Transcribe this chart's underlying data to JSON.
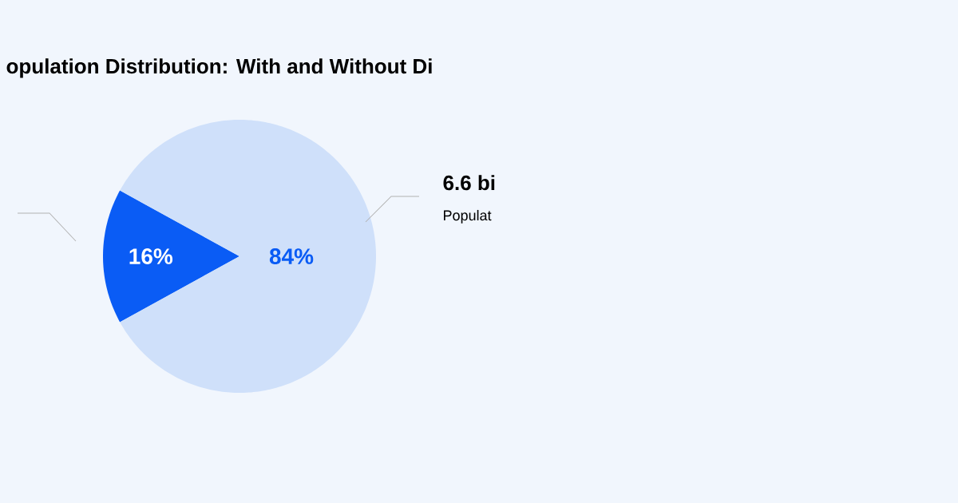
{
  "chart_data": {
    "type": "pie",
    "title": "opulation Distribution: With and Without Di",
    "categories": [
      null,
      null
    ],
    "values": [
      16,
      84
    ],
    "colors": [
      "#0a5cf5",
      "#cfe0fa"
    ],
    "value_labels": [
      "16%",
      "84%"
    ],
    "annotations": [
      "6.6 bi",
      "Populat"
    ]
  }
}
